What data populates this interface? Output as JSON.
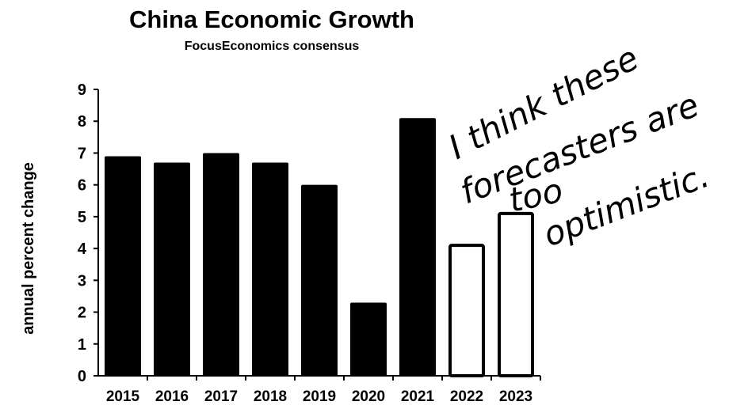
{
  "chart_data": {
    "type": "bar",
    "title": "China Economic Growth",
    "subtitle": "FocusEconomics consensus",
    "xlabel": "",
    "ylabel": "annual percent change",
    "categories": [
      "2015",
      "2016",
      "2017",
      "2018",
      "2019",
      "2020",
      "2021",
      "2022",
      "2023"
    ],
    "values": [
      6.9,
      6.7,
      7.0,
      6.7,
      6.0,
      2.3,
      8.1,
      4.1,
      5.1
    ],
    "filled": [
      true,
      true,
      true,
      true,
      true,
      true,
      true,
      false,
      false
    ],
    "ylim": [
      0,
      9
    ],
    "yticks": [
      "0",
      "1",
      "2",
      "3",
      "4",
      "5",
      "6",
      "7",
      "8",
      "9"
    ],
    "grid": false,
    "legend": "none",
    "colors": {
      "bar_fill": "#000000",
      "forecast_fill": "#ffffff",
      "stroke": "#000000"
    }
  },
  "annotation": {
    "lines": [
      "I think these",
      "forecasters are",
      "too",
      "optimistic."
    ]
  }
}
